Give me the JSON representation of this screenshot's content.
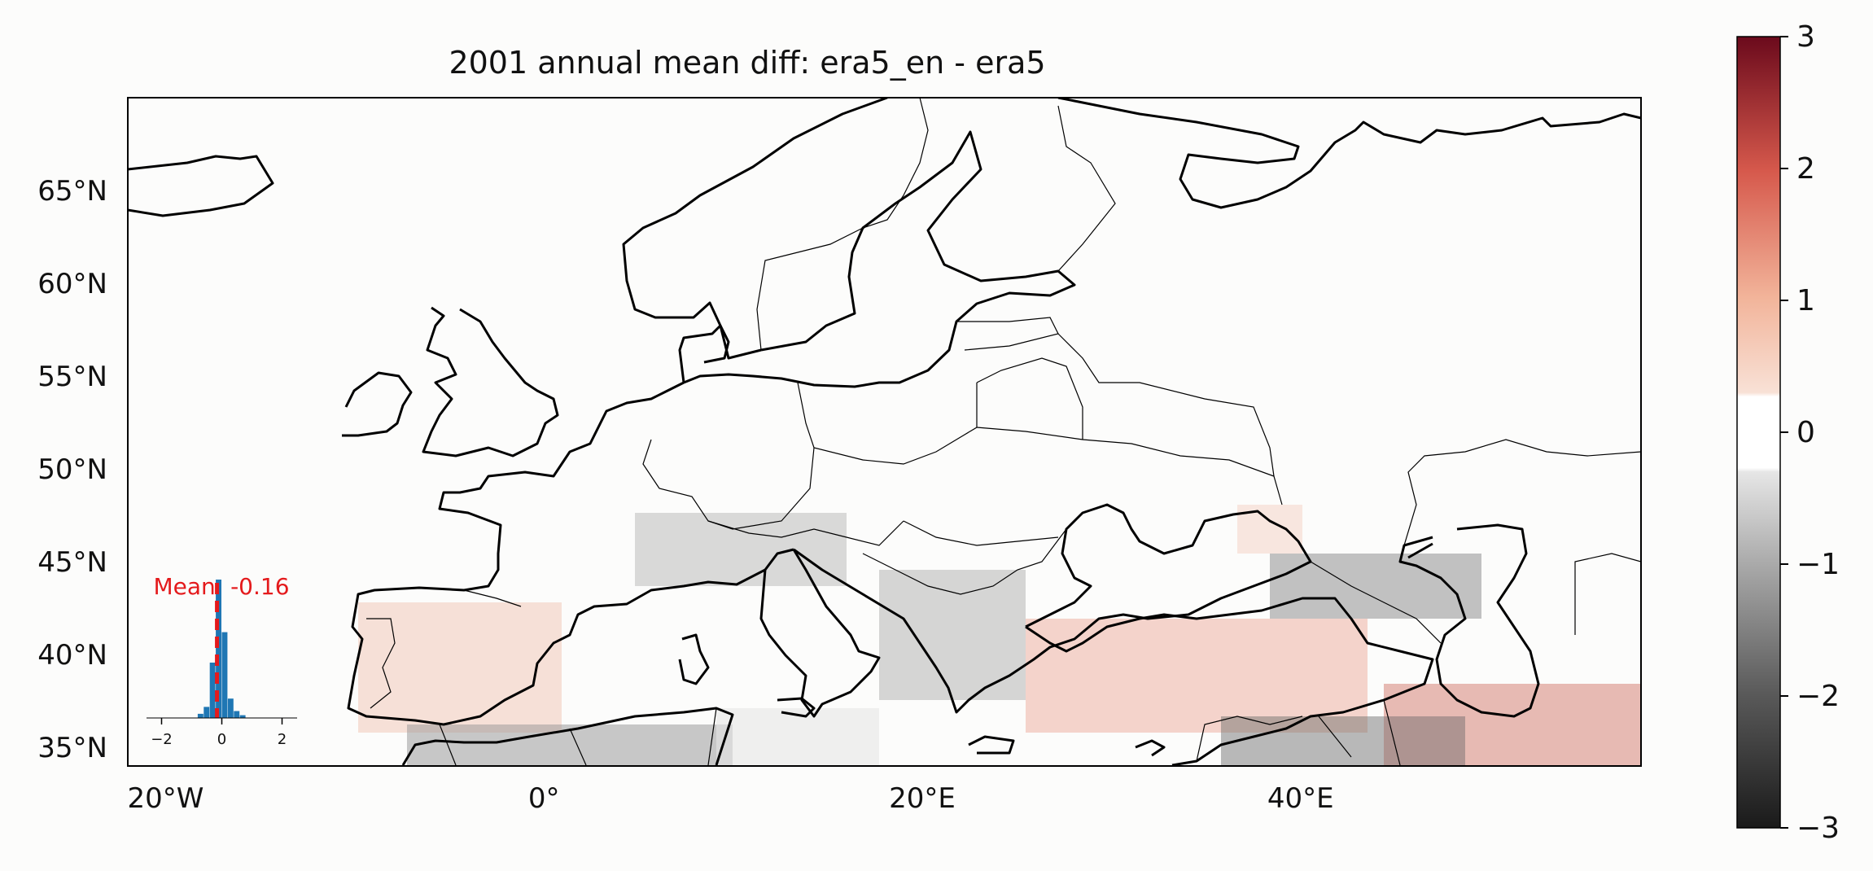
{
  "title": "2001 annual mean diff: era5_en - era5",
  "map": {
    "lon_range": [
      -22,
      58
    ],
    "lat_range": [
      34,
      70
    ],
    "lat_ticks": [
      {
        "value": 35,
        "label": "35°N"
      },
      {
        "value": 40,
        "label": "40°N"
      },
      {
        "value": 45,
        "label": "45°N"
      },
      {
        "value": 50,
        "label": "50°N"
      },
      {
        "value": 55,
        "label": "55°N"
      },
      {
        "value": 60,
        "label": "60°N"
      },
      {
        "value": 65,
        "label": "65°N"
      }
    ],
    "lon_ticks": [
      {
        "value": -20,
        "label": "20°W"
      },
      {
        "value": 0,
        "label": "0°"
      },
      {
        "value": 20,
        "label": "20°E"
      },
      {
        "value": 40,
        "label": "40°E"
      }
    ],
    "background_color": "#fcfcfb",
    "coastline_color": "#000000"
  },
  "colorbar": {
    "range": [
      -3,
      3
    ],
    "colormap": "grey-white-red diverging",
    "ticks": [
      {
        "value": 3,
        "label": "3"
      },
      {
        "value": 2,
        "label": "2"
      },
      {
        "value": 1,
        "label": "1"
      },
      {
        "value": 0,
        "label": "0"
      },
      {
        "value": -1,
        "label": "−1"
      },
      {
        "value": -2,
        "label": "−2"
      },
      {
        "value": -3,
        "label": "−3"
      }
    ]
  },
  "inset": {
    "mean_label": "Mean: -0.16",
    "mean_value": -0.16,
    "mean_color": "#e41a1c",
    "bar_color": "#1f77b4",
    "x_ticks": [
      {
        "value": -2,
        "label": "−2"
      },
      {
        "value": 0,
        "label": "0"
      },
      {
        "value": 2,
        "label": "2"
      }
    ],
    "histogram_bins": [
      -0.8,
      -0.6,
      -0.4,
      -0.2,
      0.0,
      0.2,
      0.4,
      0.6
    ],
    "histogram_counts": [
      0.03,
      0.08,
      0.4,
      1.0,
      0.62,
      0.14,
      0.05,
      0.02
    ]
  }
}
